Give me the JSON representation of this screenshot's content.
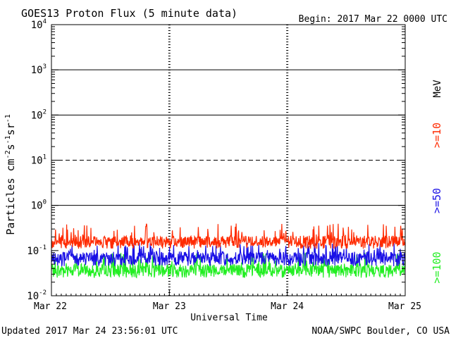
{
  "chart_data": {
    "type": "line",
    "title": "GOES13 Proton Flux (5 minute data)",
    "begin_label": "Begin: 2017 Mar 22 0000 UTC",
    "xlabel": "Universal Time",
    "ylabel_base": "Particles cm",
    "ylabel_exp1": "-2",
    "ylabel_mid1": "s",
    "ylabel_exp2": "-1",
    "ylabel_mid2": "sr",
    "ylabel_exp3": "-1",
    "unit_label": "MeV",
    "updated": "Updated 2017 Mar 24 23:56:01 UTC",
    "source": "NOAA/SWPC Boulder, CO USA",
    "x_ticks": [
      "Mar 22",
      "Mar 23",
      "Mar 24",
      "Mar 25"
    ],
    "xlim_days": [
      0,
      3
    ],
    "y_scale": "log",
    "ylim": [
      0.01,
      10000
    ],
    "y_ticks": [
      {
        "base": "10",
        "exp": "-2"
      },
      {
        "base": "10",
        "exp": "-1"
      },
      {
        "base": "10",
        "exp": "0"
      },
      {
        "base": "10",
        "exp": "1"
      },
      {
        "base": "10",
        "exp": "2"
      },
      {
        "base": "10",
        "exp": "3"
      },
      {
        "base": "10",
        "exp": "4"
      }
    ],
    "threshold_lines": [
      {
        "value": 10,
        "style": "dashed"
      },
      {
        "value": 1,
        "style": "solid"
      },
      {
        "value": 100,
        "style": "solid"
      },
      {
        "value": 1000,
        "style": "solid"
      }
    ],
    "series": [
      {
        "name": ">=10",
        "color": "#ff2a00",
        "typical": 0.17,
        "low": 0.11,
        "high": 0.4
      },
      {
        "name": ">=50",
        "color": "#1a10e6",
        "typical": 0.075,
        "low": 0.045,
        "high": 0.15
      },
      {
        "name": ">=100",
        "color": "#22ee22",
        "typical": 0.04,
        "low": 0.025,
        "high": 0.09
      }
    ]
  }
}
